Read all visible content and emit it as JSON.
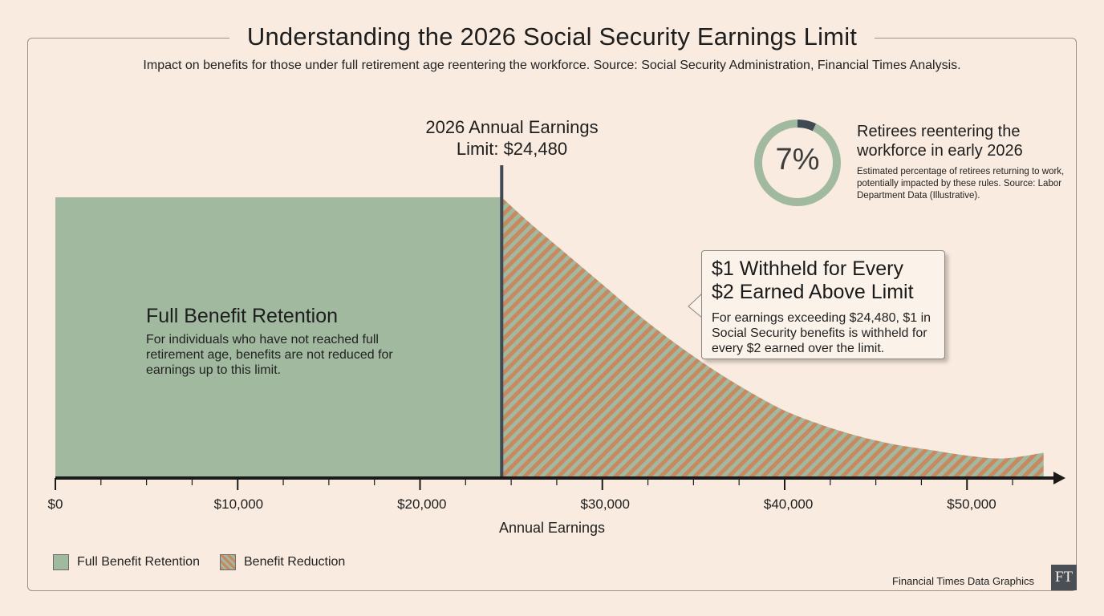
{
  "title": "Understanding the 2026 Social Security Earnings Limit",
  "subtitle": "Impact on benefits for those under full retirement age reentering the workforce. Source: Social Security Administration, Financial Times Analysis.",
  "colors": {
    "full_benefit": "#a1b99f",
    "reduction_stripe": "#c9885f",
    "background": "#f9ebdf",
    "axis": "#1a1a1a",
    "limit_line": "#3f4a54"
  },
  "chart_data": {
    "type": "area",
    "xlabel": "Annual Earnings",
    "ylabel": "",
    "xlim": [
      0,
      54500
    ],
    "ylim": [
      0,
      1
    ],
    "x_ticks": [
      "$0",
      "$10,000",
      "$20,000",
      "$30,000",
      "$40,000",
      "$50,000"
    ],
    "x_tick_values": [
      0,
      10000,
      20000,
      30000,
      40000,
      50000
    ],
    "limit": {
      "value": 24480,
      "label_line1": "2026 Annual Earnings",
      "label_line2": "Limit: $24,480"
    },
    "series": [
      {
        "name": "Full Benefit Retention",
        "x": [
          0,
          24480
        ],
        "y": [
          1.0,
          1.0
        ]
      },
      {
        "name": "Benefit Reduction",
        "x": [
          24480,
          26000,
          28000,
          30000,
          32000,
          34000,
          36000,
          38000,
          40000,
          42000,
          44000,
          46000,
          48000,
          50000,
          52000,
          54200
        ],
        "y": [
          1.0,
          0.91,
          0.8,
          0.69,
          0.58,
          0.48,
          0.39,
          0.31,
          0.24,
          0.19,
          0.15,
          0.12,
          0.1,
          0.08,
          0.07,
          0.09
        ]
      }
    ],
    "legend": {
      "position": "bottom-left",
      "entries": [
        "Full Benefit Retention",
        "Benefit Reduction"
      ]
    },
    "grid": false,
    "annotations": {
      "full": {
        "title": "Full Benefit Retention",
        "text": "For individuals who have not reached full retirement age, benefits are not reduced for earnings up to this limit."
      },
      "reduction": {
        "title_line1": "$1 Withheld for Every",
        "title_line2": "$2 Earned Above Limit",
        "text": "For earnings exceeding $24,480, $1 in Social Security benefits is withheld for every $2 earned over the limit."
      }
    }
  },
  "retirees": {
    "percent": 7,
    "percent_label": "7%",
    "title": "Retirees reentering the workforce in early 2026",
    "text": "Estimated percentage of retirees returning to work, potentially impacted by these rules. Source: Labor Department Data (Illustrative)."
  },
  "footer": {
    "text": "Financial Times Data Graphics",
    "logo": "FT"
  }
}
